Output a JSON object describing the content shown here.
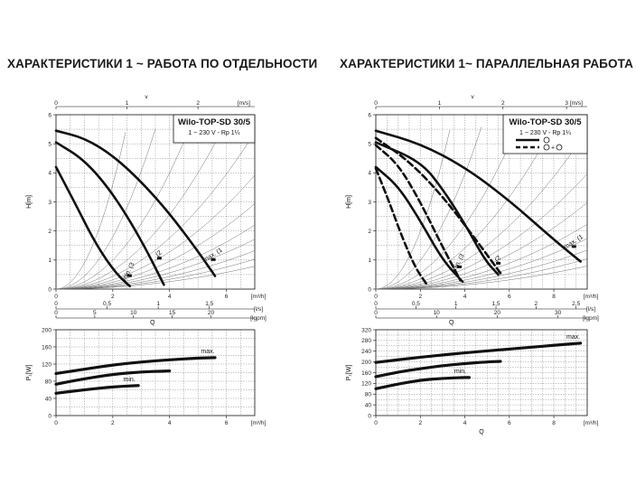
{
  "titles": {
    "left": "ХАРАКТЕРИСТИКИ 1 ~ РАБОТА ПО ОТДЕЛЬНОСТИ",
    "right": "ХАРАКТЕРИСТИКИ 1~ ПАРАЛЛЕЛЬНАЯ РАБОТА"
  },
  "colors": {
    "curve": "#111111",
    "grid": "#555555",
    "accent": "#000000"
  },
  "chart_data": [
    {
      "type": "line",
      "panel": "left-head",
      "title": "Wilo-TOP-SD 30/5",
      "subtitle": "1 ~ 230 V - Rp 1¼",
      "xlabel": "Q",
      "ylabel": "H[m]",
      "x_unit": "[m³/h]",
      "x_ticks": [
        0,
        2,
        4,
        6
      ],
      "xlim": [
        0,
        7
      ],
      "ylim": [
        0,
        6
      ],
      "y_ticks": [
        0,
        1,
        2,
        3,
        4,
        5,
        6
      ],
      "top_axis": {
        "label": "v",
        "unit": "[m/s]",
        "ticks": [
          0,
          1,
          2
        ],
        "scale": 0.4
      },
      "sec_axes": [
        {
          "unit": "[l/s]",
          "ticks": [
            0,
            0.5,
            1,
            1.5
          ],
          "scale": 3.6,
          "labels": [
            "0",
            "0,5",
            "1",
            "1,5"
          ]
        },
        {
          "unit": "[lgpm]",
          "ticks": [
            0,
            5,
            10,
            15,
            20
          ],
          "scale": 0.2728,
          "labels": [
            "0",
            "5",
            "10",
            "15",
            "20"
          ]
        }
      ],
      "series": [
        {
          "name": "max.",
          "label_text": "max. (1",
          "x": [
            0,
            1,
            2,
            3,
            4,
            5,
            5.6
          ],
          "y": [
            5.45,
            5.2,
            4.6,
            3.7,
            2.6,
            1.3,
            0.45
          ]
        },
        {
          "name": "2",
          "label_text": "(2",
          "x": [
            0,
            1,
            2,
            3,
            3.8
          ],
          "y": [
            5.05,
            4.45,
            3.3,
            1.7,
            0.15
          ]
        },
        {
          "name": "min.",
          "label_text": "min. (3",
          "x": [
            0,
            0.7,
            1.4,
            2.1,
            2.6
          ],
          "y": [
            4.2,
            2.9,
            1.55,
            0.55,
            0.1
          ]
        }
      ]
    },
    {
      "type": "line",
      "panel": "left-power",
      "xlabel": "",
      "ylabel": "P₁[W]",
      "x_unit": "[m³/h]",
      "x_ticks": [
        0,
        2,
        4,
        6
      ],
      "xlim": [
        0,
        7
      ],
      "ylim": [
        0,
        200
      ],
      "y_ticks": [
        0,
        40,
        80,
        120,
        160,
        200
      ],
      "series": [
        {
          "name": "max.",
          "label_text": "max.",
          "x": [
            0,
            1,
            2,
            3,
            4,
            5,
            5.6
          ],
          "y": [
            98,
            108,
            118,
            125,
            130,
            134,
            135
          ]
        },
        {
          "name": "2",
          "label_text": "",
          "x": [
            0,
            1,
            2,
            3,
            4
          ],
          "y": [
            73,
            86,
            96,
            102,
            104
          ]
        },
        {
          "name": "min.",
          "label_text": "min.",
          "x": [
            0,
            1,
            2,
            2.9
          ],
          "y": [
            52,
            60,
            67,
            70
          ]
        }
      ]
    },
    {
      "type": "line",
      "panel": "right-head",
      "title": "Wilo-TOP-SD 30/5",
      "subtitle": "1 ~ 230 V - Rp 1¼",
      "legend_text": "+",
      "xlabel": "Q",
      "ylabel": "H[m]",
      "x_unit": "[m³/h]",
      "x_ticks": [
        0,
        2,
        4,
        6,
        8
      ],
      "xlim": [
        0,
        9.5
      ],
      "ylim": [
        0,
        6
      ],
      "y_ticks": [
        0,
        1,
        2,
        3,
        4,
        5,
        6
      ],
      "top_axis": {
        "label": "v",
        "unit": "[m/s]",
        "ticks": [
          0,
          1,
          2,
          3
        ],
        "scale": 0.35
      },
      "sec_axes": [
        {
          "unit": "[l/s]",
          "ticks": [
            0,
            0.5,
            1,
            1.5,
            2,
            2.5
          ],
          "scale": 3.6,
          "labels": [
            "0",
            "0,5",
            "1",
            "1,5",
            "2",
            "2,5"
          ]
        },
        {
          "unit": "[lgpm]",
          "ticks": [
            0,
            10,
            20,
            30
          ],
          "scale": 0.2728,
          "labels": [
            "0",
            "10",
            "20",
            "30"
          ]
        }
      ],
      "series": [
        {
          "name": "max.",
          "label_text": "max. (1",
          "style": "solid",
          "x": [
            0,
            2,
            4,
            6,
            8,
            9.2
          ],
          "y": [
            5.45,
            5.0,
            4.2,
            3.05,
            1.7,
            0.95
          ]
        },
        {
          "name": "max.",
          "label_text": "",
          "style": "dashed",
          "x": [
            0,
            1.5,
            3,
            4.5,
            5.6
          ],
          "y": [
            5.2,
            4.4,
            3.2,
            1.7,
            0.55
          ]
        },
        {
          "name": "2",
          "label_text": "(2",
          "style": "solid",
          "x": [
            0,
            2,
            3,
            4,
            4.9,
            5.5
          ],
          "y": [
            5.05,
            4.4,
            3.45,
            2.25,
            1.0,
            0.5
          ]
        },
        {
          "name": "2",
          "label_text": "",
          "style": "dashed",
          "x": [
            0,
            1,
            2,
            3,
            3.8
          ],
          "y": [
            4.95,
            4.3,
            3.0,
            1.45,
            0.3
          ]
        },
        {
          "name": "min.",
          "label_text": "min. (3",
          "style": "solid",
          "x": [
            0,
            1,
            2,
            3,
            3.9
          ],
          "y": [
            4.2,
            3.55,
            2.35,
            1.0,
            0.25
          ]
        },
        {
          "name": "min.",
          "label_text": "",
          "style": "dashed",
          "x": [
            0,
            0.6,
            1.2,
            1.8,
            2.3
          ],
          "y": [
            4.15,
            3.0,
            1.75,
            0.7,
            0.15
          ]
        }
      ]
    },
    {
      "type": "line",
      "panel": "right-power",
      "xlabel": "Q",
      "ylabel": "P₁[W]",
      "x_unit": "[m³/h]",
      "x_ticks": [
        0,
        2,
        4,
        6,
        8
      ],
      "xlim": [
        0,
        9.5
      ],
      "ylim": [
        0,
        320
      ],
      "y_ticks": [
        0,
        40,
        80,
        120,
        160,
        200,
        240,
        280,
        320
      ],
      "series": [
        {
          "name": "max.",
          "label_text": "max.",
          "x": [
            0,
            2,
            4,
            6,
            8,
            9.2
          ],
          "y": [
            198,
            218,
            234,
            248,
            262,
            270
          ]
        },
        {
          "name": "2",
          "label_text": "",
          "x": [
            0,
            1,
            2,
            3,
            4,
            5,
            5.6
          ],
          "y": [
            145,
            162,
            175,
            186,
            194,
            200,
            202
          ]
        },
        {
          "name": "min.",
          "label_text": "min.",
          "x": [
            0,
            1,
            2,
            3,
            4,
            4.2
          ],
          "y": [
            100,
            118,
            132,
            139,
            142,
            142
          ]
        }
      ]
    }
  ]
}
